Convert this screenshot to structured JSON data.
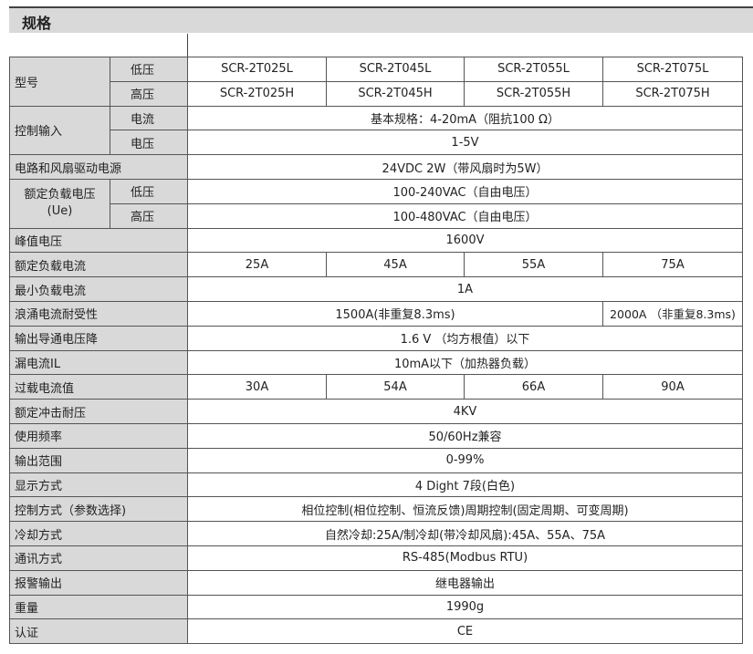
{
  "title": "规格",
  "model": {
    "label": "型号",
    "low": "低压",
    "high": "高压",
    "low_values": [
      "SCR-2T025L",
      "SCR-2T045L",
      "SCR-2T055L",
      "SCR-2T075L"
    ],
    "high_values": [
      "SCR-2T025H",
      "SCR-2T045H",
      "SCR-2T055H",
      "SCR-2T075H"
    ]
  },
  "control_input": {
    "label": "控制输入",
    "current": "电流",
    "current_value": "基本规格：4-20mA（阻抗100 Ω）",
    "voltage": "电压",
    "voltage_value": "1-5V"
  },
  "power": {
    "label": "电路和风扇驱动电源",
    "value": "24VDC 2W（带风扇时为5W）"
  },
  "rated_voltage": {
    "label": "额定负载电压",
    "label2": "(Ue)",
    "low": "低压",
    "low_value": "100-240VAC（自由电压）",
    "high": "高压",
    "high_value": "100-480VAC（自由电压）"
  },
  "peak_voltage": {
    "label": "峰值电压",
    "value": "1600V"
  },
  "rated_current": {
    "label": "额定负载电流",
    "values": [
      "25A",
      "45A",
      "55A",
      "75A"
    ]
  },
  "min_current": {
    "label": "最小负载电流",
    "value": "1A"
  },
  "surge": {
    "label": "浪涌电流耐受性",
    "value_a": "1500A(非重复8.3ms)",
    "value_b": "2000A （非重复8.3ms)"
  },
  "drop": {
    "label": "输出导通电压降",
    "value": "1.6 V （均方根值）以下"
  },
  "leak": {
    "label": "漏电流IL",
    "value": "10mA以下（加热器负载）"
  },
  "overload": {
    "label": "过载电流值",
    "values": [
      "30A",
      "54A",
      "66A",
      "90A"
    ]
  },
  "impulse": {
    "label": "额定冲击耐压",
    "value": "4KV"
  },
  "freq": {
    "label": "使用频率",
    "value": "50/60Hz兼容"
  },
  "range": {
    "label": "输出范围",
    "value": "0-99%"
  },
  "display": {
    "label": "显示方式",
    "value": "4 Dight 7段(白色)"
  },
  "control_mode": {
    "label": "控制方式（参数选择)",
    "value": "相位控制(相位控制、恒流反馈)周期控制(固定周期、可变周期)"
  },
  "cooling": {
    "label": "冷却方式",
    "value": "自然冷却:25A/制冷却(带冷却风扇):45A、55A、75A"
  },
  "comm": {
    "label": "通讯方式",
    "value": "RS-485(Modbus RTU)"
  },
  "alarm": {
    "label": "报警输出",
    "value": "继电器输出"
  },
  "weight": {
    "label": "重量",
    "value": "1990g"
  },
  "cert": {
    "label": "认证",
    "value": "CE"
  }
}
